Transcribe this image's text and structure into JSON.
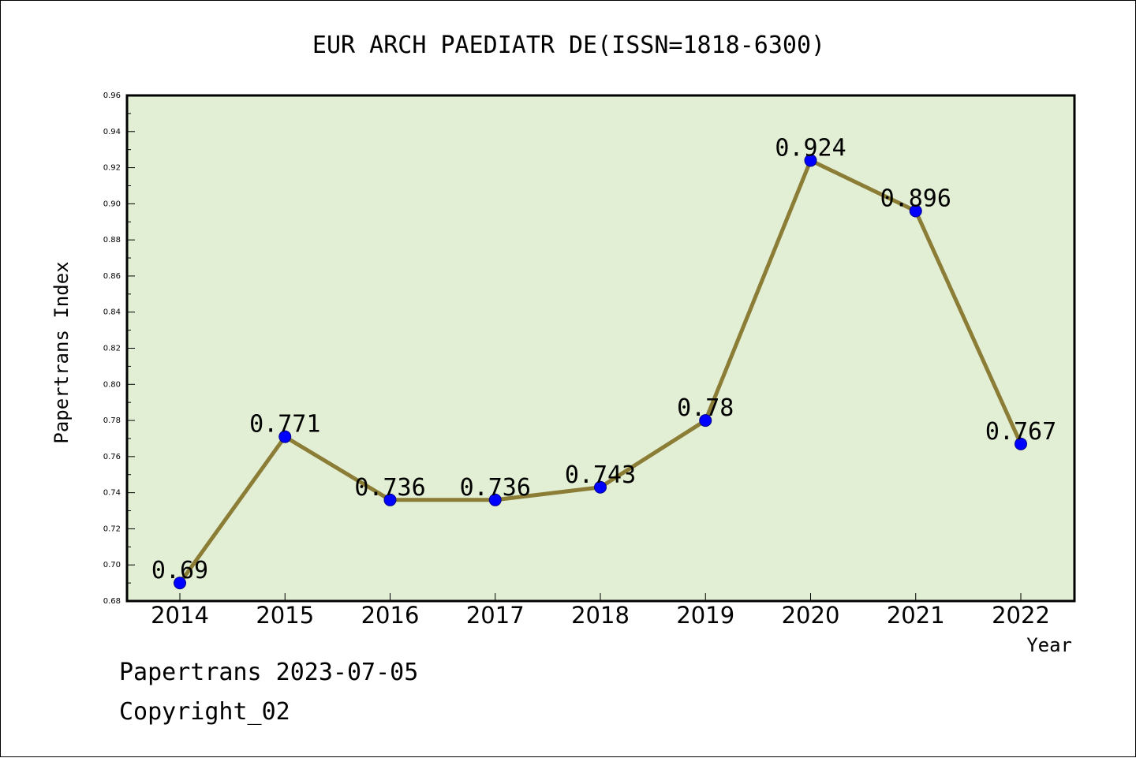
{
  "chart_data": {
    "type": "line",
    "title": "EUR ARCH PAEDIATR DE(ISSN=1818-6300)",
    "xlabel": "Year",
    "ylabel": "Papertrans Index",
    "categories": [
      "2014",
      "2015",
      "2016",
      "2017",
      "2018",
      "2019",
      "2020",
      "2021",
      "2022"
    ],
    "values": [
      0.69,
      0.771,
      0.736,
      0.736,
      0.743,
      0.78,
      0.924,
      0.896,
      0.767
    ],
    "data_labels": [
      "0.69",
      "0.771",
      "0.736",
      "0.736",
      "0.743",
      "0.78",
      "0.924",
      "0.896",
      "0.767"
    ],
    "ylim": [
      0.68,
      0.96
    ],
    "yticks": [
      "0.68",
      "0.70",
      "0.72",
      "0.74",
      "0.76",
      "0.78",
      "0.80",
      "0.82",
      "0.84",
      "0.86",
      "0.88",
      "0.90",
      "0.92",
      "0.94",
      "0.96"
    ],
    "grid": false,
    "legend": "none",
    "colors": {
      "plot_background": "#e2efd4",
      "line": "#8b7d36",
      "marker": "#0000ff",
      "axes": "#000000"
    }
  },
  "footer": {
    "line1": "Papertrans 2023-07-05",
    "line2": "Copyright_02"
  }
}
